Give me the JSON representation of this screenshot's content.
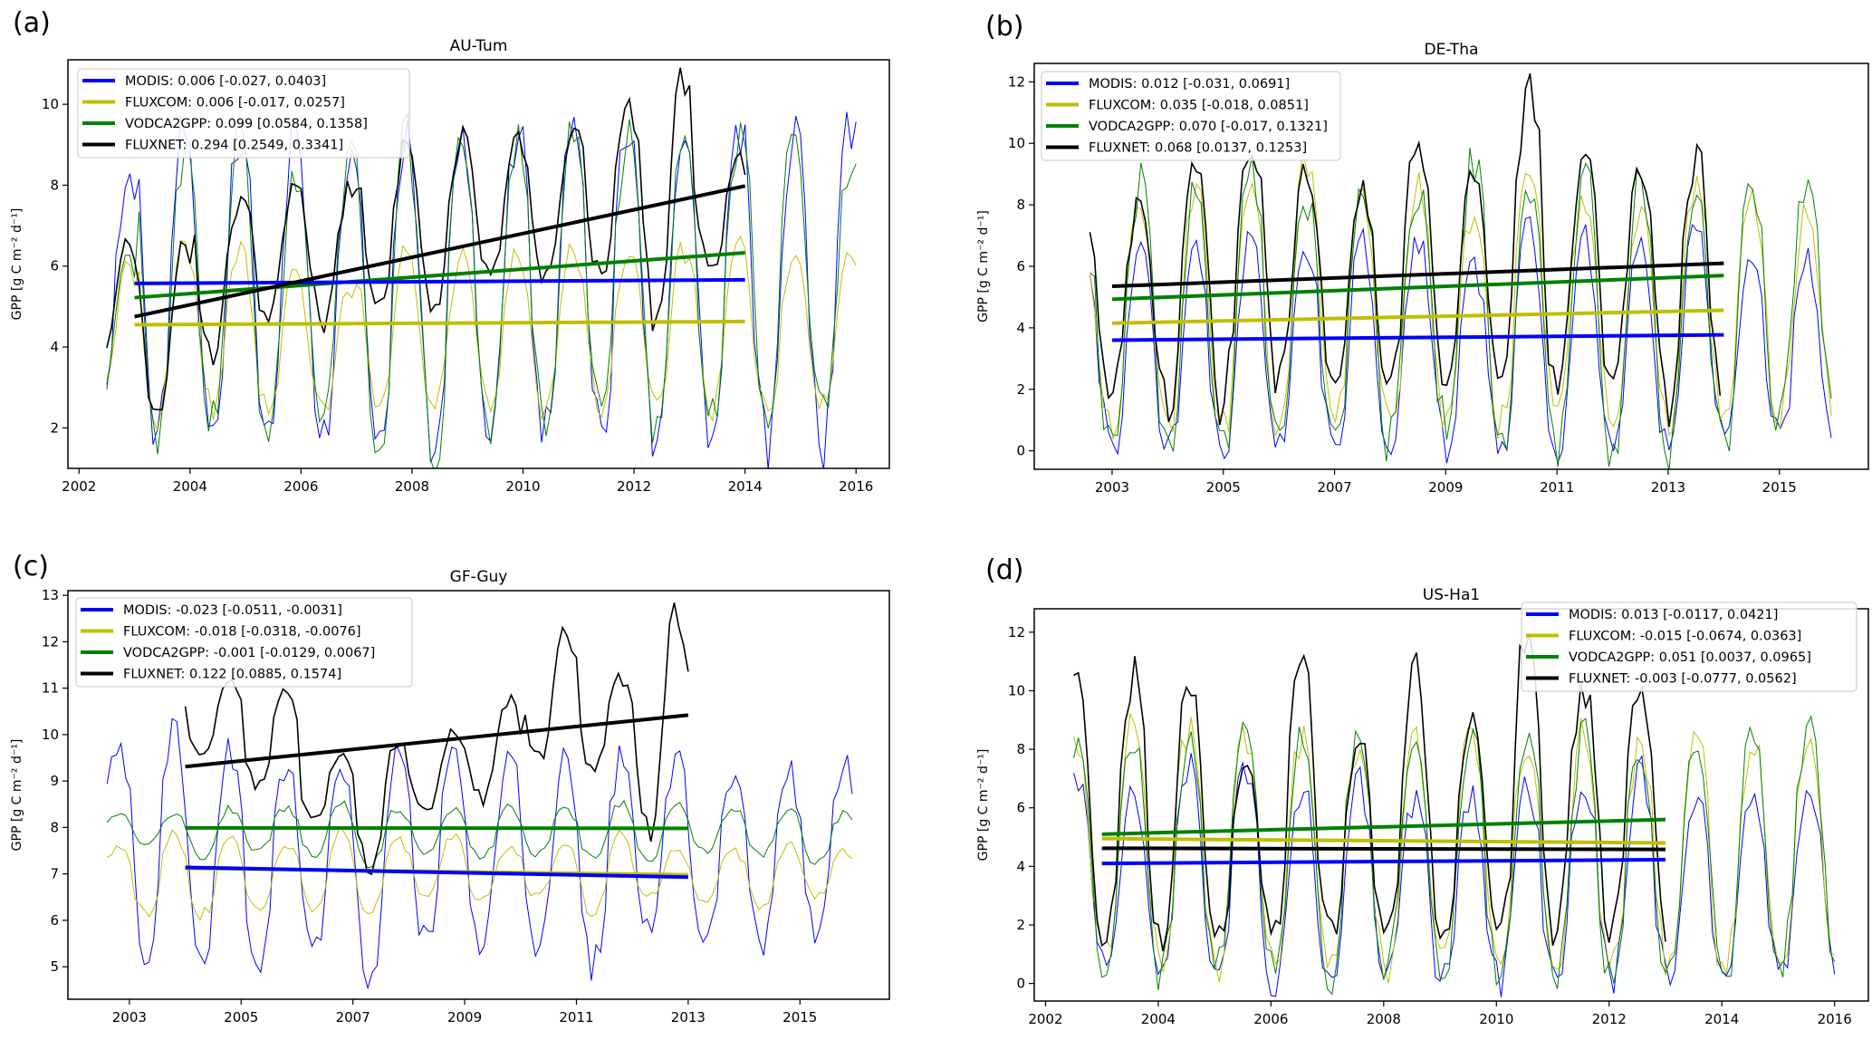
{
  "chart_data": [
    {
      "type": "line",
      "panel": "(a)",
      "title": "AU-Tum",
      "xlabel": "",
      "ylabel": "GPP [g C m⁻² d⁻¹]",
      "xlim": [
        2001.8,
        2016.6
      ],
      "ylim": [
        1.0,
        11.1
      ],
      "xticks": [
        2002,
        2004,
        2006,
        2008,
        2010,
        2012,
        2014,
        2016
      ],
      "yticks": [
        2,
        4,
        6,
        8,
        10
      ],
      "legend_position": "top-left",
      "seasonal_peak_frac": 0.9,
      "series": [
        {
          "name": "MODIS",
          "color": "#0000ff",
          "legend": "MODIS: 0.006 [-0.027, 0.0403]",
          "start": 2002.5,
          "end": 2016.0,
          "yearly_min": [
            2.4,
            1.6,
            1.5,
            1.9,
            1.7,
            1.8,
            1.5,
            1.7,
            1.9,
            1.8,
            1.7,
            1.6,
            1.5,
            1.6
          ],
          "yearly_max": [
            8.3,
            9.9,
            9.4,
            9.5,
            8.5,
            9.0,
            9.2,
            9.3,
            9.5,
            9.5,
            9.3,
            9.4,
            9.6,
            9.5
          ],
          "trend": [
            [
              2003.0,
              5.57
            ],
            [
              2014.0,
              5.66
            ]
          ]
        },
        {
          "name": "FLUXCOM",
          "color": "#bfbf00",
          "legend": "FLUXCOM: 0.006 [-0.017, 0.0257]",
          "start": 2002.5,
          "end": 2016.0,
          "yearly_min": [
            2.8,
            2.3,
            2.5,
            2.5,
            2.4,
            2.5,
            2.4,
            2.6,
            2.4,
            2.5,
            2.6,
            2.5,
            2.4,
            2.5
          ],
          "yearly_max": [
            6.0,
            6.5,
            6.6,
            6.2,
            5.5,
            6.3,
            6.3,
            6.3,
            6.5,
            6.5,
            6.4,
            6.4,
            6.4,
            6.4
          ],
          "trend": [
            [
              2003.0,
              4.55
            ],
            [
              2014.0,
              4.63
            ]
          ]
        },
        {
          "name": "VODCA2GPP",
          "color": "#008000",
          "legend": "VODCA2GPP: 0.099 [0.0584, 0.1358]",
          "start": 2002.5,
          "end": 2016.0,
          "yearly_min": [
            3.0,
            1.7,
            2.3,
            1.8,
            2.0,
            1.6,
            1.4,
            2.1,
            2.2,
            2.3,
            2.0,
            2.1,
            2.3,
            2.2
          ],
          "yearly_max": [
            6.2,
            8.8,
            9.0,
            8.4,
            8.8,
            9.1,
            9.2,
            9.1,
            9.3,
            9.3,
            9.0,
            9.0,
            9.4,
            8.5
          ],
          "trend": [
            [
              2003.0,
              5.22
            ],
            [
              2014.0,
              6.33
            ]
          ]
        },
        {
          "name": "FLUXNET",
          "color": "#000000",
          "legend": "FLUXNET: 0.294 [0.2549, 0.3341]",
          "start": 2002.5,
          "end": 2014.0,
          "yearly_min": [
            3.5,
            2.4,
            3.8,
            4.6,
            4.6,
            5.1,
            4.7,
            5.8,
            5.7,
            5.8,
            4.5,
            5.9
          ],
          "yearly_max": [
            6.5,
            6.4,
            7.6,
            8.1,
            8.0,
            8.9,
            9.2,
            9.2,
            9.3,
            9.9,
            10.7,
            8.6
          ],
          "trend": [
            [
              2003.0,
              4.75
            ],
            [
              2014.0,
              7.98
            ]
          ]
        }
      ]
    },
    {
      "type": "line",
      "panel": "(b)",
      "title": "DE-Tha",
      "xlabel": "",
      "ylabel": "GPP [g C m⁻² d⁻¹]",
      "xlim": [
        2001.6,
        2016.6
      ],
      "ylim": [
        -0.6,
        12.6
      ],
      "xticks": [
        2003,
        2005,
        2007,
        2009,
        2011,
        2013,
        2015
      ],
      "yticks": [
        0,
        2,
        4,
        6,
        8,
        10,
        12
      ],
      "legend_position": "top-left",
      "seasonal_peak_frac": 0.5,
      "series": [
        {
          "name": "MODIS",
          "color": "#0000ff",
          "legend": "MODIS: 0.012 [-0.031, 0.0691]",
          "start": 2002.6,
          "end": 2016.0,
          "yearly_min": [
            0.6,
            0.0,
            0.0,
            0.0,
            0.0,
            0.0,
            0.3,
            0.0,
            0.0,
            0.0,
            0.0,
            0.3,
            0.6,
            0.5
          ],
          "yearly_max": [
            5.9,
            6.5,
            6.5,
            7.0,
            6.3,
            6.8,
            6.8,
            6.0,
            7.3,
            6.9,
            6.7,
            7.2,
            6.0,
            6.2
          ],
          "trend": [
            [
              2003.0,
              3.6
            ],
            [
              2014.0,
              3.77
            ]
          ]
        },
        {
          "name": "FLUXCOM",
          "color": "#bfbf00",
          "legend": "FLUXCOM: 0.035 [-0.018, 0.0851]",
          "start": 2002.6,
          "end": 2016.0,
          "yearly_min": [
            1.0,
            0.9,
            0.7,
            0.7,
            0.7,
            0.8,
            0.8,
            0.6,
            1.1,
            1.0,
            0.8,
            0.8,
            1.2,
            1.2
          ],
          "yearly_max": [
            6.0,
            7.6,
            8.5,
            8.8,
            9.4,
            8.0,
            8.5,
            7.8,
            9.1,
            8.4,
            8.1,
            8.9,
            8.4,
            7.7
          ],
          "trend": [
            [
              2003.0,
              4.15
            ],
            [
              2014.0,
              4.57
            ]
          ]
        },
        {
          "name": "VODCA2GPP",
          "color": "#008000",
          "legend": "VODCA2GPP: 0.070 [-0.017, 0.1321]",
          "start": 2002.6,
          "end": 2016.0,
          "yearly_min": [
            0.2,
            0.0,
            0.0,
            0.0,
            0.0,
            0.0,
            1.1,
            0.0,
            0.0,
            0.0,
            0.0,
            0.0,
            0.0,
            1.5
          ],
          "yearly_max": [
            6.8,
            8.7,
            8.6,
            9.4,
            8.2,
            8.7,
            8.5,
            9.6,
            8.7,
            9.1,
            8.7,
            8.9,
            8.9,
            8.6
          ],
          "trend": [
            [
              2003.0,
              4.93
            ],
            [
              2014.0,
              5.7
            ]
          ]
        },
        {
          "name": "FLUXNET",
          "color": "#000000",
          "legend": "FLUXNET: 0.068 [0.0137, 0.1253]",
          "start": 2002.6,
          "end": 2014.0,
          "yearly_min": [
            1.7,
            2.0,
            1.3,
            2.2,
            2.3,
            1.7,
            2.2,
            2.4,
            2.1,
            2.1,
            2.5,
            1.4
          ],
          "yearly_max": [
            7.8,
            8.0,
            9.2,
            10.3,
            9.1,
            8.6,
            10.2,
            8.8,
            12.1,
            9.8,
            9.0,
            9.6
          ],
          "trend": [
            [
              2003.0,
              5.35
            ],
            [
              2014.0,
              6.1
            ]
          ]
        }
      ]
    },
    {
      "type": "line",
      "panel": "(c)",
      "title": "GF-Guy",
      "xlabel": "",
      "ylabel": "GPP [g C m⁻² d⁻¹]",
      "xlim": [
        2001.9,
        2016.6
      ],
      "ylim": [
        4.3,
        13.1
      ],
      "xticks": [
        2003,
        2005,
        2007,
        2009,
        2011,
        2013,
        2015
      ],
      "yticks": [
        5,
        6,
        7,
        8,
        9,
        10,
        11,
        12,
        13
      ],
      "legend_position": "top-left",
      "seasonal_peak_frac": 0.8,
      "series": [
        {
          "name": "MODIS",
          "color": "#0000ff",
          "legend": "MODIS: -0.023 [-0.0511, -0.0031]",
          "start": 2002.6,
          "end": 2016.0,
          "yearly_min": [
            6.1,
            5.3,
            5.2,
            5.1,
            5.4,
            4.7,
            5.6,
            5.4,
            5.2,
            5.0,
            5.9,
            5.6,
            5.5,
            5.7
          ],
          "yearly_max": [
            9.7,
            10.2,
            9.6,
            9.4,
            9.3,
            9.5,
            9.6,
            9.6,
            9.4,
            9.5,
            9.5,
            9.0,
            9.2,
            9.4
          ],
          "trend": [
            [
              2004.0,
              7.14
            ],
            [
              2013.0,
              6.93
            ]
          ]
        },
        {
          "name": "FLUXCOM",
          "color": "#bfbf00",
          "legend": "FLUXCOM: -0.018 [-0.0318, -0.0076]",
          "start": 2002.6,
          "end": 2016.0,
          "yearly_min": [
            6.4,
            6.1,
            6.1,
            6.2,
            6.3,
            6.2,
            6.5,
            6.4,
            6.5,
            6.1,
            6.5,
            6.4,
            6.3,
            6.5
          ],
          "yearly_max": [
            7.6,
            7.9,
            7.8,
            7.7,
            7.9,
            7.7,
            7.8,
            7.6,
            7.7,
            7.8,
            7.5,
            7.5,
            7.6,
            7.5
          ],
          "trend": [
            [
              2004.0,
              7.12
            ],
            [
              2013.0,
              6.98
            ]
          ]
        },
        {
          "name": "VODCA2GPP",
          "color": "#008000",
          "legend": "VODCA2GPP: -0.001 [-0.0129, 0.0067]",
          "start": 2002.6,
          "end": 2016.0,
          "yearly_min": [
            7.6,
            7.6,
            7.3,
            7.5,
            7.4,
            7.2,
            7.4,
            7.3,
            7.4,
            7.3,
            7.3,
            7.5,
            7.4,
            7.2
          ],
          "yearly_max": [
            8.3,
            8.3,
            8.4,
            8.4,
            8.5,
            8.4,
            8.4,
            8.5,
            8.4,
            8.5,
            8.5,
            8.4,
            8.4,
            8.3
          ],
          "trend": [
            [
              2004.0,
              7.99
            ],
            [
              2013.0,
              7.98
            ]
          ]
        },
        {
          "name": "FLUXNET",
          "color": "#000000",
          "legend": "FLUXNET: 0.122 [0.0885, 0.1574]",
          "start": 2004.0,
          "end": 2013.0,
          "yearly_min": [
            9.5,
            8.9,
            8.2,
            7.1,
            8.3,
            8.6,
            9.4,
            9.3,
            8.0
          ],
          "yearly_max": [
            11.1,
            10.9,
            9.6,
            9.9,
            10.1,
            10.7,
            12.2,
            11.2,
            12.7
          ],
          "trend": [
            [
              2004.0,
              9.31
            ],
            [
              2013.0,
              10.42
            ]
          ]
        }
      ]
    },
    {
      "type": "line",
      "panel": "(d)",
      "title": "US-Ha1",
      "xlabel": "",
      "ylabel": "GPP [g C m⁻² d⁻¹]",
      "xlim": [
        2001.8,
        2016.6
      ],
      "ylim": [
        -0.6,
        12.8
      ],
      "xticks": [
        2002,
        2004,
        2006,
        2008,
        2010,
        2012,
        2014,
        2016
      ],
      "yticks": [
        0,
        2,
        4,
        6,
        8,
        10,
        12
      ],
      "legend_position": "top-right",
      "seasonal_peak_frac": 0.55,
      "series": [
        {
          "name": "MODIS",
          "color": "#0000ff",
          "legend": "MODIS: 0.013 [-0.0117, 0.0421]",
          "start": 2002.5,
          "end": 2016.0,
          "yearly_min": [
            0.7,
            0.0,
            0.2,
            0.1,
            0.0,
            0.1,
            0.0,
            0.3,
            0.0,
            0.0,
            0.0,
            0.1,
            0.0,
            0.1
          ],
          "yearly_max": [
            7.0,
            6.5,
            7.6,
            7.3,
            6.6,
            6.9,
            6.3,
            6.3,
            6.6,
            7.0,
            7.3,
            6.4,
            6.8,
            7.0
          ],
          "trend": [
            [
              2003.0,
              4.1
            ],
            [
              2013.0,
              4.23
            ]
          ]
        },
        {
          "name": "FLUXCOM",
          "color": "#bfbf00",
          "legend": "FLUXCOM: -0.015 [-0.0674, 0.0363]",
          "start": 2002.5,
          "end": 2016.0,
          "yearly_min": [
            0.9,
            0.8,
            0.4,
            0.5,
            0.6,
            0.5,
            0.4,
            0.8,
            0.6,
            0.4,
            0.6,
            0.3,
            0.5,
            0.8
          ],
          "yearly_max": [
            8.4,
            8.7,
            8.8,
            8.4,
            8.4,
            8.3,
            8.4,
            8.6,
            8.4,
            8.5,
            8.3,
            8.2,
            8.2,
            8.3
          ],
          "trend": [
            [
              2003.0,
              4.95
            ],
            [
              2013.0,
              4.8
            ]
          ]
        },
        {
          "name": "VODCA2GPP",
          "color": "#008000",
          "legend": "VODCA2GPP: 0.051 [0.0037, 0.0965]",
          "start": 2002.5,
          "end": 2016.0,
          "yearly_min": [
            0.7,
            0.0,
            0.3,
            0.8,
            0.0,
            0.0,
            0.5,
            0.0,
            0.0,
            0.0,
            0.3,
            0.2,
            0.2,
            0.8
          ],
          "yearly_max": [
            8.4,
            8.4,
            8.2,
            8.5,
            8.2,
            8.3,
            8.3,
            8.5,
            8.7,
            8.4,
            8.2,
            8.5,
            8.5,
            8.7
          ],
          "trend": [
            [
              2003.0,
              5.1
            ],
            [
              2013.0,
              5.6
            ]
          ]
        },
        {
          "name": "FLUXNET",
          "color": "#000000",
          "legend": "FLUXNET: -0.003 [-0.0777, 0.0562]",
          "start": 2002.5,
          "end": 2013.0,
          "yearly_min": [
            1.4,
            1.7,
            1.3,
            1.4,
            1.6,
            1.6,
            1.5,
            1.5,
            1.5,
            1.8,
            1.7
          ],
          "yearly_max": [
            10.5,
            10.5,
            10.2,
            7.4,
            10.7,
            8.4,
            10.6,
            8.9,
            12.1,
            10.2,
            10.2
          ],
          "trend": [
            [
              2003.0,
              4.62
            ],
            [
              2013.0,
              4.58
            ]
          ]
        }
      ]
    }
  ]
}
